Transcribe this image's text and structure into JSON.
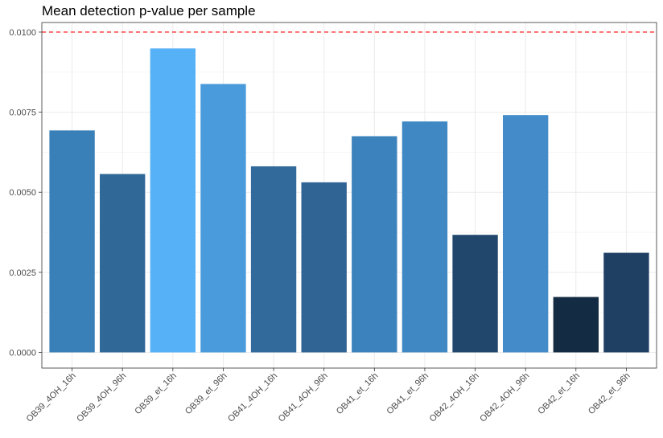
{
  "chart_data": {
    "type": "bar",
    "title": "Mean detection p-value per sample",
    "xlabel": "",
    "ylabel": "",
    "categories": [
      "OB39_4OH_16h",
      "OB39_4OH_96h",
      "OB39_et_16h",
      "OB39_et_96h",
      "OB41_4OH_16h",
      "OB41_4OH_96h",
      "OB41_et_16h",
      "OB41_et_96h",
      "OB42_4OH_16h",
      "OB42_4OH_96h",
      "OB42_et_16h",
      "OB42_et_96h"
    ],
    "values": [
      0.00693,
      0.00557,
      0.00949,
      0.00838,
      0.00581,
      0.00531,
      0.00675,
      0.00721,
      0.00367,
      0.00741,
      0.00173,
      0.00311
    ],
    "bar_colors": [
      "#3a80b8",
      "#306998",
      "#56b1f7",
      "#4a9bdb",
      "#326a9b",
      "#2f6495",
      "#3c83bd",
      "#3f88c4",
      "#22476c",
      "#448cc9",
      "#132b43",
      "#1f4063"
    ],
    "ylim": [
      -0.00049,
      0.0103
    ],
    "yticks": [
      0.0,
      0.0025,
      0.005,
      0.0075,
      0.01
    ],
    "ytick_labels": [
      "0.0000",
      "0.0025",
      "0.0050",
      "0.0075",
      "0.0100"
    ],
    "threshold": 0.01,
    "threshold_color": "#ff0000",
    "grid": true,
    "legend": "none"
  }
}
